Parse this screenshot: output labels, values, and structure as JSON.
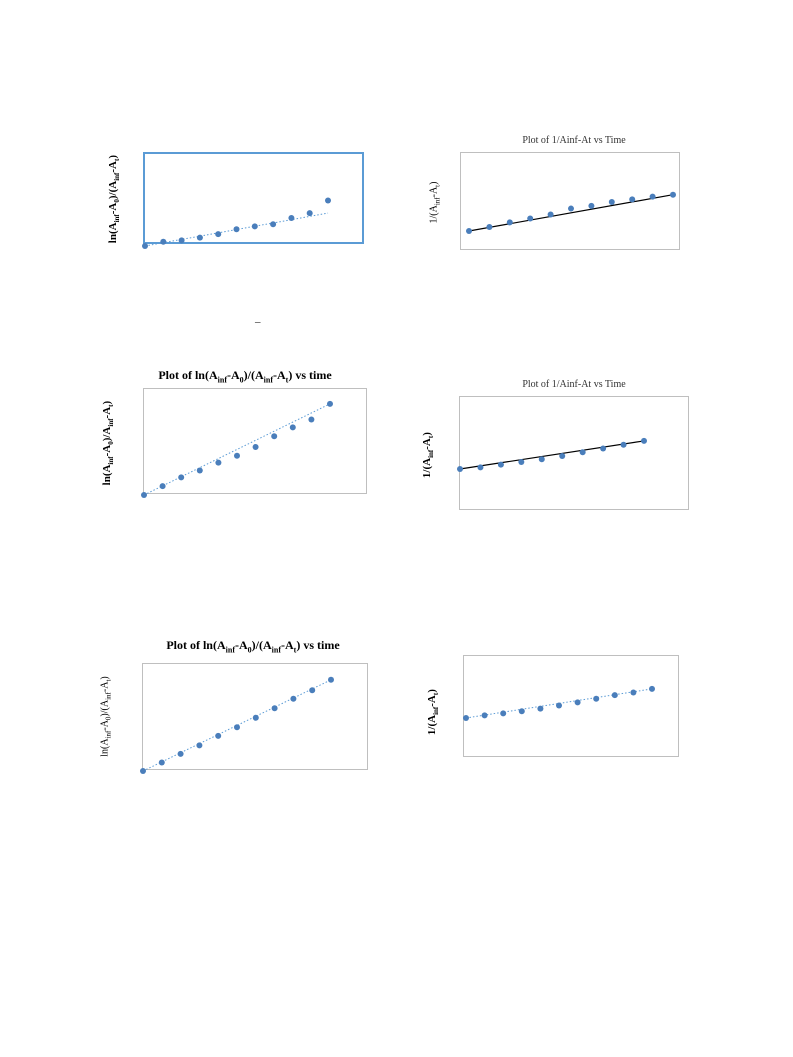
{
  "chart_data": [
    {
      "id": "c1",
      "type": "scatter",
      "title": "",
      "ylabel_parts": [
        "ln(A",
        "inf",
        "-A",
        "0",
        ")/(A",
        "inf",
        "-A",
        "t",
        ")"
      ],
      "trendline": "dotted",
      "series": [
        {
          "values": [
            0.0,
            0.06,
            0.08,
            0.12,
            0.17,
            0.24,
            0.28,
            0.31,
            0.4,
            0.47,
            0.65
          ]
        }
      ],
      "trend_values": [
        0.0,
        0.47
      ]
    },
    {
      "id": "c2",
      "type": "scatter",
      "title": "Plot of 1/Ainf-At vs Time",
      "ylabel_parts": [
        "1/(A",
        "inf",
        "-A",
        "t",
        ")"
      ],
      "trendline": "solid",
      "series": [
        {
          "values": [
            0.0,
            0.06,
            0.13,
            0.19,
            0.25,
            0.34,
            0.38,
            0.44,
            0.48,
            0.52,
            0.55
          ]
        }
      ],
      "trend_values": [
        0.0,
        0.55
      ]
    },
    {
      "id": "c3",
      "type": "scatter",
      "title_parts": [
        "Plot of ln(A",
        "inf",
        "-A",
        "0",
        ")/(A",
        "inf",
        "-A",
        "t",
        ") vs time"
      ],
      "ylabel_parts": [
        "ln(A",
        "inf",
        "-A",
        "0",
        ")/A",
        "inf",
        "-A",
        "t",
        ")"
      ],
      "trendline": "dotted",
      "series": [
        {
          "values": [
            0.0,
            0.09,
            0.18,
            0.25,
            0.33,
            0.4,
            0.49,
            0.6,
            0.69,
            0.77,
            0.93
          ]
        }
      ],
      "trend_values": [
        0.0,
        0.93
      ]
    },
    {
      "id": "c4",
      "type": "scatter",
      "title": "Plot of 1/Ainf-At vs Time",
      "ylabel_parts": [
        "1/(A",
        "inf",
        "-A",
        "t",
        ")"
      ],
      "trendline": "solid",
      "series": [
        {
          "values": [
            0.0,
            0.03,
            0.08,
            0.13,
            0.18,
            0.24,
            0.31,
            0.38,
            0.45,
            0.52
          ]
        }
      ],
      "trend_values": [
        0.0,
        0.52
      ]
    },
    {
      "id": "c5",
      "type": "scatter",
      "title_parts": [
        "Plot of ln(A",
        "inf",
        "-A",
        "0",
        ")/(A",
        "inf",
        "-A",
        "t",
        ") vs time"
      ],
      "ylabel_parts": [
        "ln(A",
        "inf",
        "-A",
        "0",
        ")/(A",
        "inf",
        "-A",
        "t",
        ")"
      ],
      "trendline": "dotted",
      "series": [
        {
          "values": [
            0.0,
            0.09,
            0.18,
            0.27,
            0.37,
            0.46,
            0.56,
            0.66,
            0.76,
            0.85,
            0.96
          ]
        }
      ],
      "trend_values": [
        0.0,
        0.96
      ]
    },
    {
      "id": "c6",
      "type": "scatter",
      "title": "",
      "ylabel_parts": [
        "1/(A",
        "inf",
        "-A",
        "t",
        ")"
      ],
      "trendline": "dotted",
      "series": [
        {
          "values": [
            0.0,
            0.05,
            0.09,
            0.13,
            0.18,
            0.24,
            0.3,
            0.37,
            0.44,
            0.49,
            0.56
          ]
        }
      ],
      "trend_values": [
        0.0,
        0.56
      ]
    }
  ],
  "colors": {
    "marker": "#4a7ebb",
    "trend_dotted": "#5b9bd5",
    "trend_solid": "#000000",
    "border": "#bfbfbf",
    "highlight_border": "#5b9bd5"
  },
  "stray_mark": "_"
}
